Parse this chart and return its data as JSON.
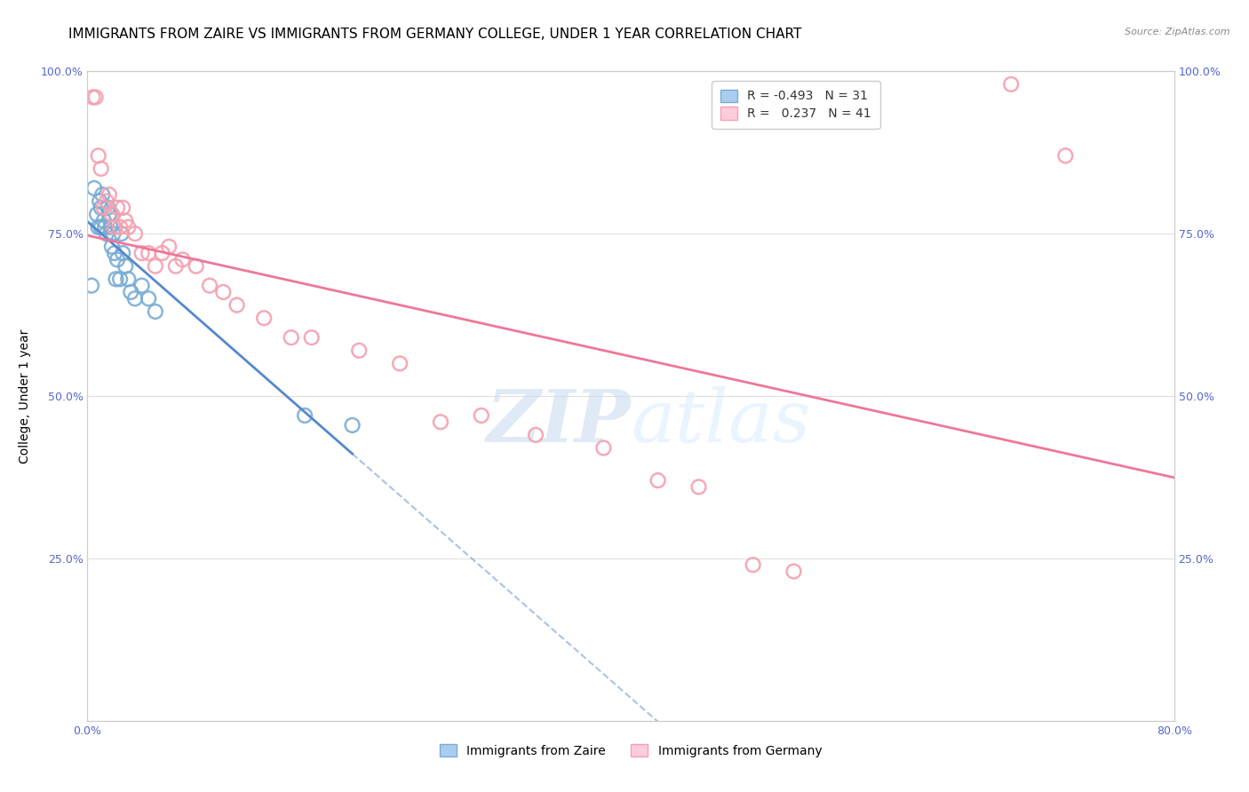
{
  "title": "IMMIGRANTS FROM ZAIRE VS IMMIGRANTS FROM GERMANY COLLEGE, UNDER 1 YEAR CORRELATION CHART",
  "source": "Source: ZipAtlas.com",
  "ylabel": "College, Under 1 year",
  "xlim": [
    0.0,
    0.8
  ],
  "ylim": [
    0.0,
    1.0
  ],
  "zaire_R": -0.493,
  "zaire_N": 31,
  "germany_R": 0.237,
  "germany_N": 41,
  "zaire_color": "#7aadd4",
  "germany_color": "#f5a0b0",
  "zaire_line_color": "#5588cc",
  "germany_line_color": "#ee7799",
  "background_color": "#ffffff",
  "grid_color": "#e0e0e0",
  "tick_color": "#5566cc",
  "zaire_x": [
    0.003,
    0.005,
    0.007,
    0.008,
    0.009,
    0.01,
    0.01,
    0.011,
    0.012,
    0.013,
    0.014,
    0.015,
    0.016,
    0.017,
    0.018,
    0.019,
    0.02,
    0.021,
    0.022,
    0.024,
    0.025,
    0.026,
    0.028,
    0.03,
    0.032,
    0.035,
    0.04,
    0.045,
    0.05,
    0.16,
    0.195
  ],
  "zaire_y": [
    0.67,
    0.82,
    0.78,
    0.76,
    0.8,
    0.79,
    0.76,
    0.81,
    0.77,
    0.76,
    0.75,
    0.79,
    0.78,
    0.76,
    0.73,
    0.75,
    0.72,
    0.68,
    0.71,
    0.68,
    0.75,
    0.72,
    0.7,
    0.68,
    0.66,
    0.65,
    0.67,
    0.65,
    0.63,
    0.47,
    0.455
  ],
  "germany_x": [
    0.004,
    0.006,
    0.008,
    0.01,
    0.012,
    0.014,
    0.016,
    0.018,
    0.02,
    0.022,
    0.024,
    0.026,
    0.028,
    0.03,
    0.035,
    0.04,
    0.045,
    0.05,
    0.055,
    0.06,
    0.065,
    0.07,
    0.08,
    0.09,
    0.1,
    0.11,
    0.13,
    0.15,
    0.165,
    0.2,
    0.23,
    0.26,
    0.29,
    0.33,
    0.38,
    0.42,
    0.45,
    0.49,
    0.52,
    0.68,
    0.72
  ],
  "germany_y": [
    0.96,
    0.96,
    0.87,
    0.85,
    0.79,
    0.8,
    0.81,
    0.78,
    0.76,
    0.79,
    0.76,
    0.79,
    0.77,
    0.76,
    0.75,
    0.72,
    0.72,
    0.7,
    0.72,
    0.73,
    0.7,
    0.71,
    0.7,
    0.67,
    0.66,
    0.64,
    0.62,
    0.59,
    0.59,
    0.57,
    0.55,
    0.46,
    0.47,
    0.44,
    0.42,
    0.37,
    0.36,
    0.24,
    0.23,
    0.98,
    0.87
  ],
  "title_fontsize": 11,
  "axis_label_fontsize": 10,
  "tick_fontsize": 9,
  "legend_fontsize": 10
}
